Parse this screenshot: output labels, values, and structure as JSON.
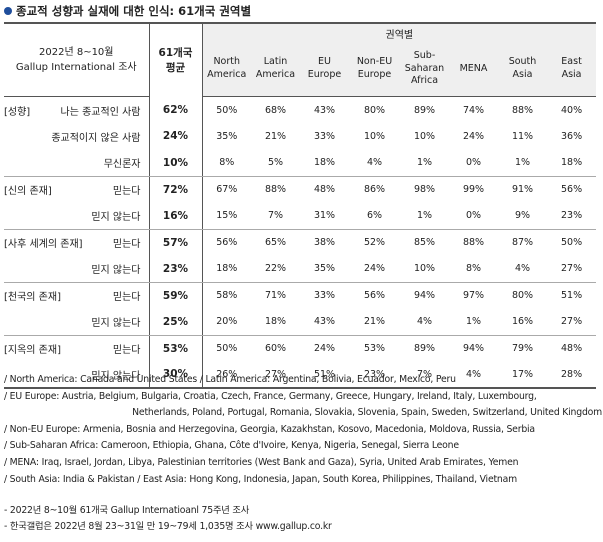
{
  "title": "종교적 성향과 실재에 대한 인식: 61개국 권역별",
  "header": {
    "corner_line1": "2022년 8~10월",
    "corner_line2": "Gallup International 조사",
    "region_group": "권역별",
    "avg_line1": "61개국",
    "avg_line2": "평균",
    "regions": [
      {
        "l1": "North",
        "l2": "America",
        "l3": ""
      },
      {
        "l1": "Latin",
        "l2": "America",
        "l3": ""
      },
      {
        "l1": "EU",
        "l2": "Europe",
        "l3": ""
      },
      {
        "l1": "Non-EU",
        "l2": "Europe",
        "l3": ""
      },
      {
        "l1": "Sub-",
        "l2": "Saharan",
        "l3": "Africa"
      },
      {
        "l1": "MENA",
        "l2": "",
        "l3": ""
      },
      {
        "l1": "South",
        "l2": "Asia",
        "l3": ""
      },
      {
        "l1": "East",
        "l2": "Asia",
        "l3": ""
      }
    ]
  },
  "rows": [
    {
      "cat": "[성향]",
      "resp": "나는 종교적인 사람",
      "avg": "62%",
      "vals": [
        "50%",
        "68%",
        "43%",
        "80%",
        "89%",
        "74%",
        "88%",
        "40%"
      ]
    },
    {
      "cat": "",
      "resp": "종교적이지 않은 사람",
      "avg": "24%",
      "vals": [
        "35%",
        "21%",
        "33%",
        "10%",
        "10%",
        "24%",
        "11%",
        "36%"
      ]
    },
    {
      "cat": "",
      "resp": "무신론자",
      "avg": "10%",
      "vals": [
        "8%",
        "5%",
        "18%",
        "4%",
        "1%",
        "0%",
        "1%",
        "18%"
      ]
    },
    {
      "cat": "[신의 존재]",
      "resp": "믿는다",
      "avg": "72%",
      "vals": [
        "67%",
        "88%",
        "48%",
        "86%",
        "98%",
        "99%",
        "91%",
        "56%"
      ]
    },
    {
      "cat": "",
      "resp": "믿지 않는다",
      "avg": "16%",
      "vals": [
        "15%",
        "7%",
        "31%",
        "6%",
        "1%",
        "0%",
        "9%",
        "23%"
      ]
    },
    {
      "cat": "[사후 세계의 존재]",
      "resp": "믿는다",
      "avg": "57%",
      "vals": [
        "56%",
        "65%",
        "38%",
        "52%",
        "85%",
        "88%",
        "87%",
        "50%"
      ]
    },
    {
      "cat": "",
      "resp": "믿지 않는다",
      "avg": "23%",
      "vals": [
        "18%",
        "22%",
        "35%",
        "24%",
        "10%",
        "8%",
        "4%",
        "27%"
      ]
    },
    {
      "cat": "[천국의 존재]",
      "resp": "믿는다",
      "avg": "59%",
      "vals": [
        "58%",
        "71%",
        "33%",
        "56%",
        "94%",
        "97%",
        "80%",
        "51%"
      ]
    },
    {
      "cat": "",
      "resp": "믿지 않는다",
      "avg": "25%",
      "vals": [
        "20%",
        "18%",
        "43%",
        "21%",
        "4%",
        "1%",
        "16%",
        "27%"
      ]
    },
    {
      "cat": "[지옥의 존재]",
      "resp": "믿는다",
      "avg": "53%",
      "vals": [
        "50%",
        "60%",
        "24%",
        "53%",
        "89%",
        "94%",
        "79%",
        "48%"
      ]
    },
    {
      "cat": "",
      "resp": "믿지 않는다",
      "avg": "30%",
      "vals": [
        "26%",
        "27%",
        "51%",
        "23%",
        "7%",
        "4%",
        "17%",
        "28%"
      ]
    }
  ],
  "notes": [
    "/ North America: Canada and United States  / Latin America: Argentina, Bolivia, Ecuador, Mexico, Peru",
    "/ EU Europe: Austria, Belgium, Bulgaria, Croatia, Czech, France, Germany, Greece, Hungary, Ireland, Italy, Luxembourg,",
    "Netherlands, Poland, Portugal, Romania, Slovakia, Slovenia, Spain, Sweden, Switzerland, United Kingdom",
    "/ Non-EU Europe: Armenia, Bosnia and Herzegovina, Georgia, Kazakhstan, Kosovo, Macedonia, Moldova, Russia, Serbia",
    "/ Sub-Saharan Africa: Cameroon, Ethiopia, Ghana, Côte d'Ivoire, Kenya, Nigeria, Senegal, Sierra Leone",
    "/ MENA: Iraq, Israel, Jordan, Libya, Palestinian territories (West Bank and Gaza), Syria, United Arab Emirates, Yemen",
    "/ South Asia: India & Pakistan / East Asia: Hong Kong, Indonesia, Japan, South Korea, Philippines, Thailand, Vietnam"
  ],
  "footnotes": [
    "- 2022년 8~10월 61개국 Gallup Internatioanl 75주년 조사",
    "- 한국갤럽은 2022년 8월 23~31일 만 19~79세 1,035명 조사 www.gallup.co.kr"
  ],
  "colors": {
    "title_mark": "#1f4e9c",
    "header_bg": "#efefef"
  }
}
